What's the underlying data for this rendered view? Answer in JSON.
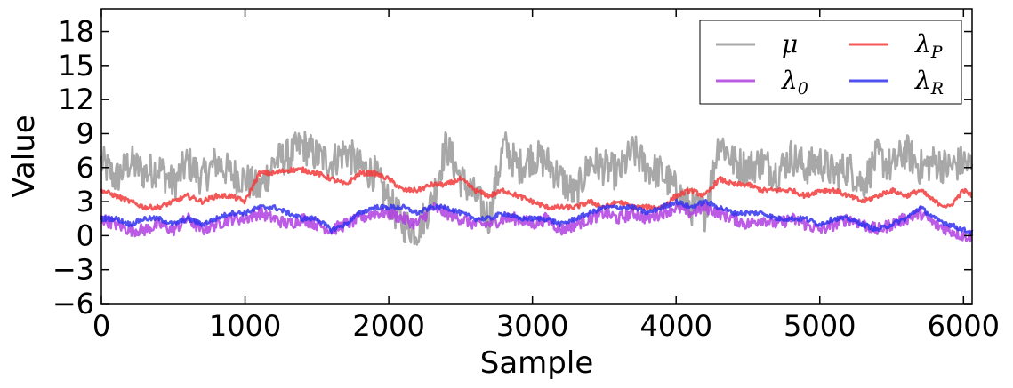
{
  "chart_data": {
    "type": "line",
    "title": "",
    "xlabel": "Sample",
    "ylabel": "Value",
    "xlim": [
      0,
      6060
    ],
    "ylim": [
      -6,
      20
    ],
    "xticks": [
      0,
      1000,
      2000,
      3000,
      4000,
      5000,
      6000
    ],
    "yticks": [
      -6,
      -3,
      0,
      3,
      6,
      9,
      12,
      15,
      18
    ],
    "xtick_labels": [
      "0",
      "1000",
      "2000",
      "3000",
      "4000",
      "5000",
      "6000"
    ],
    "ytick_labels": [
      "−6",
      "−3",
      "0",
      "3",
      "6",
      "9",
      "12",
      "15",
      "18"
    ],
    "grid": false,
    "legend_position": "top-right",
    "legend_columns": 2,
    "series": [
      {
        "name": "μ",
        "color": "#999999",
        "x": [
          0,
          100,
          200,
          300,
          400,
          500,
          600,
          700,
          800,
          900,
          1000,
          1100,
          1200,
          1300,
          1400,
          1500,
          1600,
          1700,
          1800,
          1900,
          2000,
          2100,
          2200,
          2300,
          2400,
          2500,
          2600,
          2700,
          2800,
          2900,
          3000,
          3100,
          3200,
          3300,
          3400,
          3500,
          3600,
          3700,
          3800,
          3900,
          4000,
          4100,
          4200,
          4300,
          4400,
          4500,
          4600,
          4700,
          4800,
          4900,
          5000,
          5100,
          5200,
          5300,
          5400,
          5500,
          5600,
          5700,
          5800,
          5900,
          6000,
          6060
        ],
        "y": [
          6.5,
          5.0,
          6.5,
          5.5,
          6.0,
          4.5,
          6.5,
          5.0,
          6.5,
          5.5,
          5.0,
          4.0,
          6.5,
          7.0,
          8.0,
          7.0,
          6.5,
          7.5,
          6.0,
          5.5,
          3.0,
          1.0,
          0.5,
          3.0,
          8.0,
          5.0,
          3.5,
          1.5,
          8.0,
          6.0,
          7.0,
          6.5,
          5.0,
          3.5,
          6.5,
          6.0,
          5.5,
          7.5,
          6.0,
          5.5,
          4.0,
          2.5,
          2.0,
          8.5,
          6.5,
          6.0,
          6.5,
          5.5,
          7.0,
          6.0,
          6.5,
          5.5,
          6.0,
          4.5,
          7.0,
          6.0,
          7.5,
          6.0,
          6.5,
          6.0,
          6.5,
          6.0
        ]
      },
      {
        "name": "λ0",
        "color": "#b03ee0",
        "x": [
          0,
          100,
          200,
          300,
          400,
          500,
          600,
          700,
          800,
          900,
          1000,
          1100,
          1200,
          1300,
          1400,
          1500,
          1600,
          1700,
          1800,
          1900,
          2000,
          2100,
          2200,
          2300,
          2400,
          2500,
          2600,
          2700,
          2800,
          2900,
          3000,
          3100,
          3200,
          3300,
          3400,
          3500,
          3600,
          3700,
          3800,
          3900,
          4000,
          4100,
          4200,
          4300,
          4400,
          4500,
          4600,
          4700,
          4800,
          4900,
          5000,
          5100,
          5200,
          5300,
          5400,
          5500,
          5600,
          5700,
          5800,
          5900,
          6000,
          6060
        ],
        "y": [
          1.5,
          1.0,
          0.5,
          0.5,
          1.0,
          0.5,
          1.5,
          0.5,
          1.0,
          1.5,
          1.5,
          2.0,
          1.5,
          1.0,
          1.5,
          1.0,
          0.5,
          1.0,
          1.5,
          2.0,
          2.0,
          1.5,
          1.0,
          2.5,
          2.0,
          1.5,
          1.0,
          1.0,
          1.5,
          1.5,
          1.0,
          1.5,
          0.5,
          1.0,
          1.5,
          2.0,
          1.5,
          2.0,
          1.5,
          2.0,
          2.5,
          2.0,
          2.5,
          2.0,
          1.5,
          1.0,
          1.5,
          1.0,
          1.5,
          1.0,
          0.5,
          1.0,
          1.5,
          1.0,
          0.5,
          1.0,
          1.5,
          2.0,
          1.0,
          0.5,
          0.0,
          0.0
        ]
      },
      {
        "name": "λP",
        "color": "#f23a3a",
        "x": [
          0,
          100,
          200,
          300,
          400,
          500,
          600,
          700,
          800,
          900,
          1000,
          1100,
          1200,
          1300,
          1400,
          1500,
          1600,
          1700,
          1800,
          1900,
          2000,
          2100,
          2200,
          2300,
          2400,
          2500,
          2600,
          2700,
          2800,
          2900,
          3000,
          3100,
          3200,
          3300,
          3400,
          3500,
          3600,
          3700,
          3800,
          3900,
          4000,
          4100,
          4200,
          4300,
          4400,
          4500,
          4600,
          4700,
          4800,
          4900,
          5000,
          5100,
          5200,
          5300,
          5400,
          5500,
          5600,
          5700,
          5800,
          5900,
          6000,
          6060
        ],
        "y": [
          4.0,
          3.5,
          3.0,
          2.5,
          2.5,
          3.0,
          3.5,
          3.0,
          3.5,
          3.5,
          3.0,
          5.5,
          5.5,
          5.8,
          5.8,
          5.5,
          5.0,
          4.5,
          5.5,
          5.5,
          5.0,
          4.0,
          4.0,
          4.5,
          4.5,
          5.0,
          4.0,
          3.5,
          4.0,
          3.5,
          3.0,
          2.5,
          2.5,
          2.5,
          3.0,
          2.5,
          3.0,
          2.5,
          2.5,
          2.5,
          3.5,
          4.0,
          3.5,
          5.0,
          4.5,
          4.5,
          4.0,
          4.0,
          4.0,
          3.5,
          4.0,
          4.0,
          3.5,
          3.0,
          3.5,
          4.0,
          3.5,
          4.0,
          3.0,
          2.5,
          4.0,
          3.5
        ]
      },
      {
        "name": "λR",
        "color": "#3232f0",
        "x": [
          0,
          100,
          200,
          300,
          400,
          500,
          600,
          700,
          800,
          900,
          1000,
          1100,
          1200,
          1300,
          1400,
          1500,
          1600,
          1700,
          1800,
          1900,
          2000,
          2100,
          2200,
          2300,
          2400,
          2500,
          2600,
          2700,
          2800,
          2900,
          3000,
          3100,
          3200,
          3300,
          3400,
          3500,
          3600,
          3700,
          3800,
          3900,
          4000,
          4100,
          4200,
          4300,
          4400,
          4500,
          4600,
          4700,
          4800,
          4900,
          5000,
          5100,
          5200,
          5300,
          5400,
          5500,
          5600,
          5700,
          5800,
          5900,
          6000,
          6060
        ],
        "y": [
          1.5,
          1.5,
          1.0,
          1.5,
          1.5,
          1.0,
          1.5,
          1.0,
          1.5,
          2.0,
          2.0,
          2.5,
          2.5,
          2.0,
          1.5,
          1.5,
          0.5,
          1.0,
          2.0,
          2.5,
          2.5,
          2.5,
          2.0,
          2.5,
          2.5,
          2.0,
          1.5,
          1.5,
          2.0,
          1.5,
          1.5,
          1.5,
          1.0,
          1.5,
          2.0,
          2.5,
          2.5,
          2.5,
          2.0,
          2.5,
          3.0,
          2.5,
          3.0,
          2.5,
          2.0,
          2.0,
          2.0,
          1.5,
          1.5,
          1.5,
          1.0,
          1.5,
          1.5,
          1.0,
          0.5,
          1.0,
          1.5,
          2.5,
          1.5,
          1.0,
          0.5,
          0.3
        ]
      }
    ]
  }
}
